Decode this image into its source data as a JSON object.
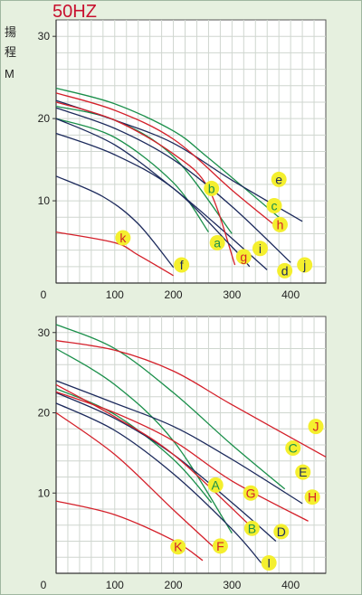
{
  "title": "50HZ",
  "colors": {
    "title": "#c8102e",
    "green": "#1a8f4a",
    "red": "#d4202a",
    "navy": "#1c2a5c",
    "bubble": "#f4ef2e",
    "grid": "#cfd6cf",
    "panel": "#ffffff",
    "bg": "#e6f0df"
  },
  "ylabel_chars": [
    "揚",
    "程",
    "M"
  ],
  "chart_data": [
    {
      "type": "line",
      "xlim": [
        0,
        460
      ],
      "ylim": [
        0,
        32
      ],
      "xticks": [
        "0",
        "100",
        "200",
        "300",
        "400"
      ],
      "yticks": [
        "10",
        "20",
        "30"
      ],
      "grid": true,
      "series": [
        {
          "name": "a",
          "color": "green",
          "label_color": "green",
          "points": [
            [
              0,
              20
            ],
            [
              100,
              17.7
            ],
            [
              200,
              12.2
            ],
            [
              260,
              6.2
            ]
          ],
          "label_at": [
            275,
            4.9
          ]
        },
        {
          "name": "b",
          "color": "green",
          "label_color": "green",
          "points": [
            [
              0,
              21.5
            ],
            [
              100,
              19.8
            ],
            [
              200,
              15.4
            ],
            [
              300,
              6
            ]
          ],
          "label_at": [
            265,
            11.5
          ]
        },
        {
          "name": "c",
          "color": "green",
          "label_color": "green",
          "points": [
            [
              0,
              23.7
            ],
            [
              100,
              21.8
            ],
            [
              200,
              18.5
            ],
            [
              260,
              15.2
            ],
            [
              380,
              8
            ]
          ],
          "label_at": [
            372,
            9.4
          ]
        },
        {
          "name": "d",
          "color": "navy",
          "label_color": "navy",
          "points": [
            [
              0,
              20
            ],
            [
              100,
              16.8
            ],
            [
              200,
              11.5
            ],
            [
              270,
              7.3
            ],
            [
              360,
              1.6
            ]
          ],
          "label_at": [
            390,
            1.5
          ]
        },
        {
          "name": "e",
          "color": "navy",
          "label_color": "navy",
          "points": [
            [
              0,
              22.2
            ],
            [
              100,
              19.8
            ],
            [
              200,
              17
            ],
            [
              300,
              12.5
            ],
            [
              420,
              7.5
            ]
          ],
          "label_at": [
            380,
            12.6
          ]
        },
        {
          "name": "f",
          "color": "navy",
          "label_color": "navy",
          "points": [
            [
              0,
              13
            ],
            [
              80,
              10.5
            ],
            [
              140,
              7.2
            ],
            [
              200,
              1.9
            ]
          ],
          "label_at": [
            214,
            2.2
          ]
        },
        {
          "name": "g",
          "color": "red",
          "label_color": "red",
          "points": [
            [
              0,
              22
            ],
            [
              100,
              19.8
            ],
            [
              200,
              15.7
            ],
            [
              260,
              11.5
            ],
            [
              305,
              2.2
            ]
          ],
          "label_at": [
            320,
            3.2
          ]
        },
        {
          "name": "h",
          "color": "red",
          "label_color": "red",
          "points": [
            [
              0,
              23.1
            ],
            [
              100,
              21
            ],
            [
              200,
              17.5
            ],
            [
              300,
              11.3
            ],
            [
              370,
              7.2
            ]
          ],
          "label_at": [
            382,
            7.1
          ]
        },
        {
          "name": "i",
          "color": "navy",
          "label_color": "navy",
          "points": [
            [
              0,
              18.2
            ],
            [
              100,
              15.6
            ],
            [
              200,
              11.5
            ],
            [
              300,
              4.4
            ],
            [
              330,
              2
            ]
          ],
          "label_at": [
            348,
            4.2
          ]
        },
        {
          "name": "j",
          "color": "navy",
          "label_color": "navy",
          "points": [
            [
              0,
              21.3
            ],
            [
              100,
              18.8
            ],
            [
              200,
              15
            ],
            [
              300,
              9.3
            ],
            [
              400,
              2.5
            ]
          ],
          "label_at": [
            424,
            2.2
          ]
        },
        {
          "name": "k",
          "color": "red",
          "label_color": "red",
          "points": [
            [
              0,
              6.2
            ],
            [
              100,
              4.9
            ],
            [
              140,
              3.4
            ],
            [
              200,
              0.9
            ]
          ],
          "label_at": [
            114,
            5.5
          ]
        }
      ]
    },
    {
      "type": "line",
      "xlim": [
        0,
        460
      ],
      "ylim": [
        0,
        32
      ],
      "xticks": [
        "0",
        "100",
        "200",
        "300",
        "400"
      ],
      "yticks": [
        "10",
        "20",
        "30"
      ],
      "grid": true,
      "series": [
        {
          "name": "A",
          "color": "green",
          "label_color": "green",
          "points": [
            [
              0,
              23
            ],
            [
              100,
              19.8
            ],
            [
              200,
              14.2
            ],
            [
              265,
              8.8
            ]
          ],
          "label_at": [
            272,
            11
          ]
        },
        {
          "name": "B",
          "color": "green",
          "label_color": "green",
          "points": [
            [
              0,
              28
            ],
            [
              100,
              23.5
            ],
            [
              200,
              16.5
            ],
            [
              300,
              5
            ]
          ],
          "label_at": [
            334,
            5.6
          ]
        },
        {
          "name": "C",
          "color": "green",
          "label_color": "green",
          "points": [
            [
              0,
              31
            ],
            [
              100,
              28
            ],
            [
              200,
              22.5
            ],
            [
              300,
              16
            ],
            [
              390,
              10.5
            ]
          ],
          "label_at": [
            404,
            15.6
          ]
        },
        {
          "name": "D",
          "color": "navy",
          "label_color": "navy",
          "points": [
            [
              0,
              22.5
            ],
            [
              100,
              19.3
            ],
            [
              200,
              14.8
            ],
            [
              300,
              8.8
            ],
            [
              375,
              4
            ]
          ],
          "label_at": [
            384,
            5.2
          ]
        },
        {
          "name": "E",
          "color": "navy",
          "label_color": "navy",
          "points": [
            [
              0,
              24
            ],
            [
              100,
              21.2
            ],
            [
              200,
              18.3
            ],
            [
              300,
              14.2
            ],
            [
              420,
              8.7
            ]
          ],
          "label_at": [
            421,
            12.6
          ]
        },
        {
          "name": "F",
          "color": "red",
          "label_color": "red",
          "points": [
            [
              0,
              20
            ],
            [
              100,
              14.8
            ],
            [
              200,
              7.9
            ],
            [
              280,
              2.5
            ]
          ],
          "label_at": [
            280,
            3.4
          ]
        },
        {
          "name": "G",
          "color": "red",
          "label_color": "red",
          "points": [
            [
              0,
              23.5
            ],
            [
              100,
              19.5
            ],
            [
              200,
              14.8
            ],
            [
              330,
              6
            ]
          ],
          "label_at": [
            332,
            10
          ]
        },
        {
          "name": "H",
          "color": "red",
          "label_color": "red",
          "points": [
            [
              0,
              22.6
            ],
            [
              100,
              20
            ],
            [
              200,
              16.5
            ],
            [
              300,
              11.5
            ],
            [
              430,
              6.5
            ]
          ],
          "label_at": [
            437,
            9.5
          ]
        },
        {
          "name": "I",
          "color": "navy",
          "label_color": "navy",
          "points": [
            [
              0,
              21.2
            ],
            [
              100,
              17.8
            ],
            [
              200,
              12.4
            ],
            [
              300,
              5.5
            ],
            [
              350,
              1.3
            ]
          ],
          "label_at": [
            363,
            1.3
          ]
        },
        {
          "name": "J",
          "color": "red",
          "label_color": "red",
          "points": [
            [
              0,
              29
            ],
            [
              100,
              27.8
            ],
            [
              200,
              25.2
            ],
            [
              300,
              21
            ],
            [
              460,
              14.5
            ]
          ],
          "label_at": [
            443,
            18.3
          ]
        },
        {
          "name": "K",
          "color": "red",
          "label_color": "red",
          "points": [
            [
              0,
              9
            ],
            [
              100,
              7.3
            ],
            [
              200,
              4.1
            ],
            [
              250,
              1.6
            ]
          ],
          "label_at": [
            208,
            3.3
          ]
        }
      ]
    }
  ]
}
